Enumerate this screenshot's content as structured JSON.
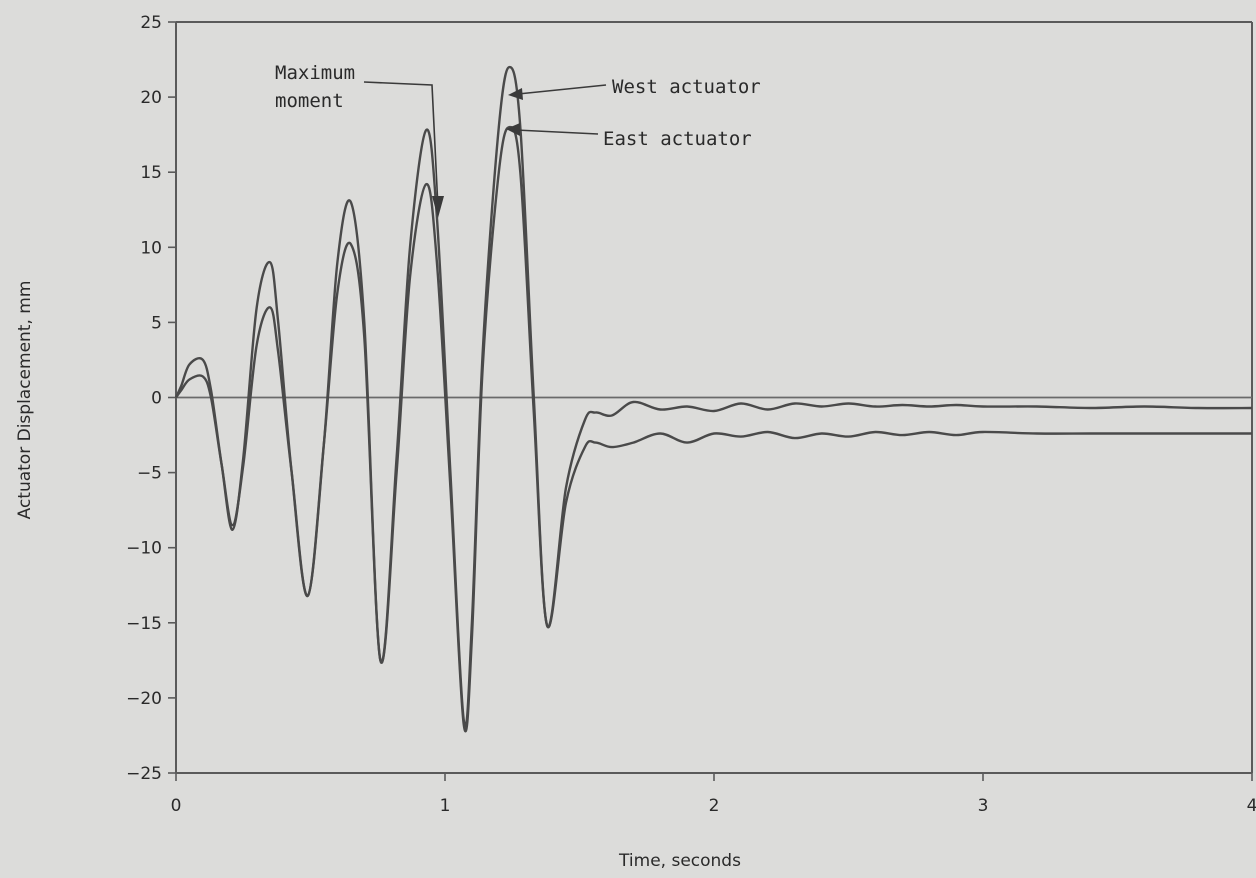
{
  "chart_data": {
    "type": "line",
    "title": "",
    "xlabel": "Time, seconds",
    "ylabel": "Actuator Displacement, mm",
    "xlim": [
      0,
      4
    ],
    "ylim": [
      -25,
      25
    ],
    "xticks": [
      0,
      1,
      2,
      3,
      4
    ],
    "yticks": [
      25,
      20,
      15,
      10,
      5,
      0,
      -5,
      -10,
      -15,
      -20,
      -25
    ],
    "grid": false,
    "series": [
      {
        "name": "West actuator",
        "x": [
          0,
          0.02,
          0.05,
          0.1,
          0.13,
          0.17,
          0.21,
          0.25,
          0.3,
          0.35,
          0.38,
          0.43,
          0.49,
          0.55,
          0.6,
          0.65,
          0.7,
          0.76,
          0.82,
          0.87,
          0.93,
          0.97,
          1.02,
          1.07,
          1.1,
          1.14,
          1.2,
          1.24,
          1.28,
          1.33,
          1.38,
          1.45,
          1.52,
          1.56,
          1.62,
          1.7,
          1.8,
          1.9,
          2.0,
          2.1,
          2.2,
          2.3,
          2.4,
          2.5,
          2.6,
          2.7,
          2.8,
          2.9,
          3.0,
          3.2,
          3.4,
          3.6,
          3.8,
          4.0
        ],
        "y": [
          0,
          0.8,
          2.2,
          2.5,
          0.5,
          -4.5,
          -8.8,
          -4.0,
          6.0,
          9.0,
          5.0,
          -5.0,
          -13.2,
          -3.0,
          9.0,
          13.0,
          5.0,
          -17.5,
          -4.0,
          10.0,
          17.8,
          12.0,
          -5.0,
          -21.5,
          -15.0,
          3.0,
          18.0,
          22.0,
          18.0,
          0.0,
          -15.2,
          -6.0,
          -1.5,
          -1.0,
          -1.2,
          -0.3,
          -0.8,
          -0.6,
          -0.9,
          -0.4,
          -0.8,
          -0.4,
          -0.6,
          -0.4,
          -0.6,
          -0.5,
          -0.6,
          -0.5,
          -0.6,
          -0.6,
          -0.7,
          -0.6,
          -0.7,
          -0.7
        ]
      },
      {
        "name": "East actuator",
        "x": [
          0,
          0.02,
          0.05,
          0.1,
          0.13,
          0.17,
          0.21,
          0.25,
          0.3,
          0.35,
          0.38,
          0.43,
          0.49,
          0.55,
          0.6,
          0.65,
          0.7,
          0.76,
          0.82,
          0.87,
          0.93,
          0.97,
          1.02,
          1.07,
          1.1,
          1.14,
          1.2,
          1.24,
          1.28,
          1.33,
          1.38,
          1.45,
          1.52,
          1.56,
          1.62,
          1.7,
          1.8,
          1.9,
          2.0,
          2.1,
          2.2,
          2.3,
          2.4,
          2.5,
          2.6,
          2.7,
          2.8,
          2.9,
          3.0,
          3.2,
          3.4,
          3.6,
          3.8,
          4.0
        ],
        "y": [
          0,
          0.5,
          1.2,
          1.4,
          0.0,
          -4.5,
          -8.5,
          -4.5,
          3.5,
          6.0,
          3.0,
          -5.0,
          -13.2,
          -3.0,
          7.0,
          10.2,
          4.0,
          -17.5,
          -5.0,
          8.0,
          14.2,
          9.0,
          -6.0,
          -21.8,
          -16.0,
          2.0,
          15.0,
          18.0,
          15.0,
          -1.0,
          -15.2,
          -7.0,
          -3.3,
          -3.0,
          -3.3,
          -3.0,
          -2.4,
          -3.0,
          -2.4,
          -2.6,
          -2.3,
          -2.7,
          -2.4,
          -2.6,
          -2.3,
          -2.5,
          -2.3,
          -2.5,
          -2.3,
          -2.4,
          -2.4,
          -2.4,
          -2.4,
          -2.4
        ]
      }
    ],
    "annotations": [
      {
        "text_lines": [
          "Maximum",
          "moment"
        ],
        "points_to": {
          "x": 0.98,
          "y": 12.0
        }
      },
      {
        "text_lines": [
          "West actuator"
        ],
        "points_to": {
          "x": 1.24,
          "y": 22.0
        }
      },
      {
        "text_lines": [
          "East actuator"
        ],
        "points_to": {
          "x": 1.24,
          "y": 18.0
        }
      }
    ]
  }
}
